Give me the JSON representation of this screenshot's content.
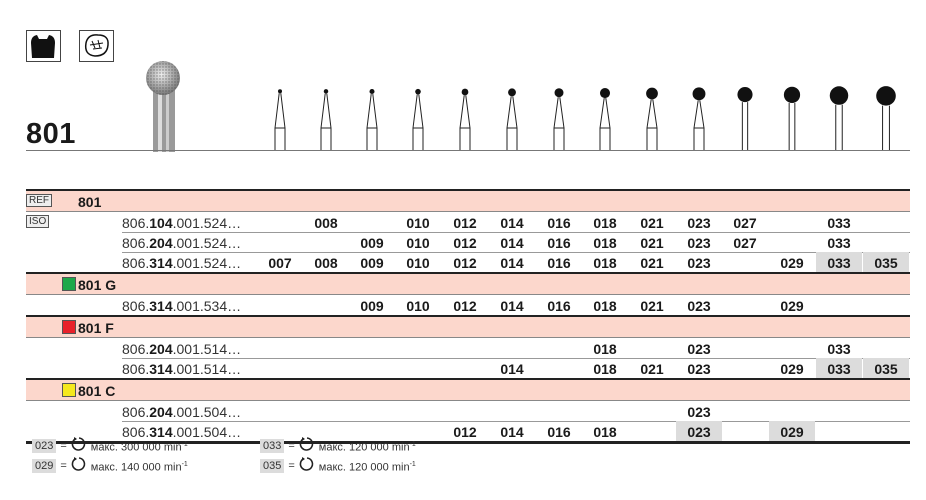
{
  "title": "801",
  "symbols": [
    "tooth-cavity-icon",
    "occlusal-surface-icon"
  ],
  "sizes": [
    "007",
    "008",
    "009",
    "010",
    "012",
    "014",
    "016",
    "018",
    "021",
    "023",
    "027",
    "029",
    "033",
    "035"
  ],
  "labels": {
    "ref": "REF",
    "iso": "ISO"
  },
  "groups": [
    {
      "name": "801",
      "color": null,
      "rows": [
        {
          "ref_prefix": "806.",
          "ref_bold": "104",
          "ref_suffix": ".001.524…",
          "values": [
            "",
            "008",
            "",
            "010",
            "012",
            "014",
            "016",
            "018",
            "021",
            "023",
            "027",
            "",
            "033",
            ""
          ],
          "grey": []
        },
        {
          "ref_prefix": "806.",
          "ref_bold": "204",
          "ref_suffix": ".001.524…",
          "values": [
            "",
            "",
            "009",
            "010",
            "012",
            "014",
            "016",
            "018",
            "021",
            "023",
            "027",
            "",
            "033",
            ""
          ],
          "grey": []
        },
        {
          "ref_prefix": "806.",
          "ref_bold": "314",
          "ref_suffix": ".001.524…",
          "values": [
            "007",
            "008",
            "009",
            "010",
            "012",
            "014",
            "016",
            "018",
            "021",
            "023",
            "",
            "029",
            "033",
            "035"
          ],
          "grey": [
            "033",
            "035"
          ]
        }
      ]
    },
    {
      "name": "801 G",
      "color": "#1ea84a",
      "rows": [
        {
          "ref_prefix": "806.",
          "ref_bold": "314",
          "ref_suffix": ".001.534…",
          "values": [
            "",
            "",
            "009",
            "010",
            "012",
            "014",
            "016",
            "018",
            "021",
            "023",
            "",
            "029",
            "",
            ""
          ],
          "grey": []
        }
      ]
    },
    {
      "name": "801 F",
      "color": "#e8202a",
      "rows": [
        {
          "ref_prefix": "806.",
          "ref_bold": "204",
          "ref_suffix": ".001.514…",
          "values": [
            "",
            "",
            "",
            "",
            "",
            "",
            "",
            "018",
            "",
            "023",
            "",
            "",
            "033",
            ""
          ],
          "grey": []
        },
        {
          "ref_prefix": "806.",
          "ref_bold": "314",
          "ref_suffix": ".001.514…",
          "values": [
            "",
            "",
            "",
            "",
            "",
            "014",
            "",
            "018",
            "021",
            "023",
            "",
            "029",
            "033",
            "035"
          ],
          "grey": [
            "033",
            "035"
          ]
        }
      ]
    },
    {
      "name": "801 C",
      "color": "#f5e81e",
      "rows": [
        {
          "ref_prefix": "806.",
          "ref_bold": "204",
          "ref_suffix": ".001.504…",
          "values": [
            "",
            "",
            "",
            "",
            "",
            "",
            "",
            "",
            "",
            "023",
            "",
            "",
            "",
            ""
          ],
          "grey": []
        },
        {
          "ref_prefix": "806.",
          "ref_bold": "314",
          "ref_suffix": ".001.504…",
          "values": [
            "",
            "",
            "",
            "",
            "012",
            "014",
            "016",
            "018",
            "",
            "023",
            "",
            "029",
            "",
            ""
          ],
          "grey": [
            "023",
            "029"
          ]
        }
      ]
    }
  ],
  "legend": [
    {
      "code": "023",
      "eq": "=",
      "icon": "rotation-icon",
      "text": "макс. 300 000 min",
      "sup": "-1"
    },
    {
      "code": "033",
      "eq": "=",
      "icon": "rotation-icon",
      "text": "макс. 120 000 min",
      "sup": "-1"
    },
    {
      "code": "029",
      "eq": "=",
      "icon": "rotation-icon",
      "text": "макс. 140 000 min",
      "sup": "-1"
    },
    {
      "code": "035",
      "eq": "=",
      "icon": "rotation-icon",
      "text": "макс. 120 000 min",
      "sup": "-1"
    }
  ],
  "colors": {
    "group_bg": "#fcd7cc",
    "highlight": "#dcdcdc"
  }
}
